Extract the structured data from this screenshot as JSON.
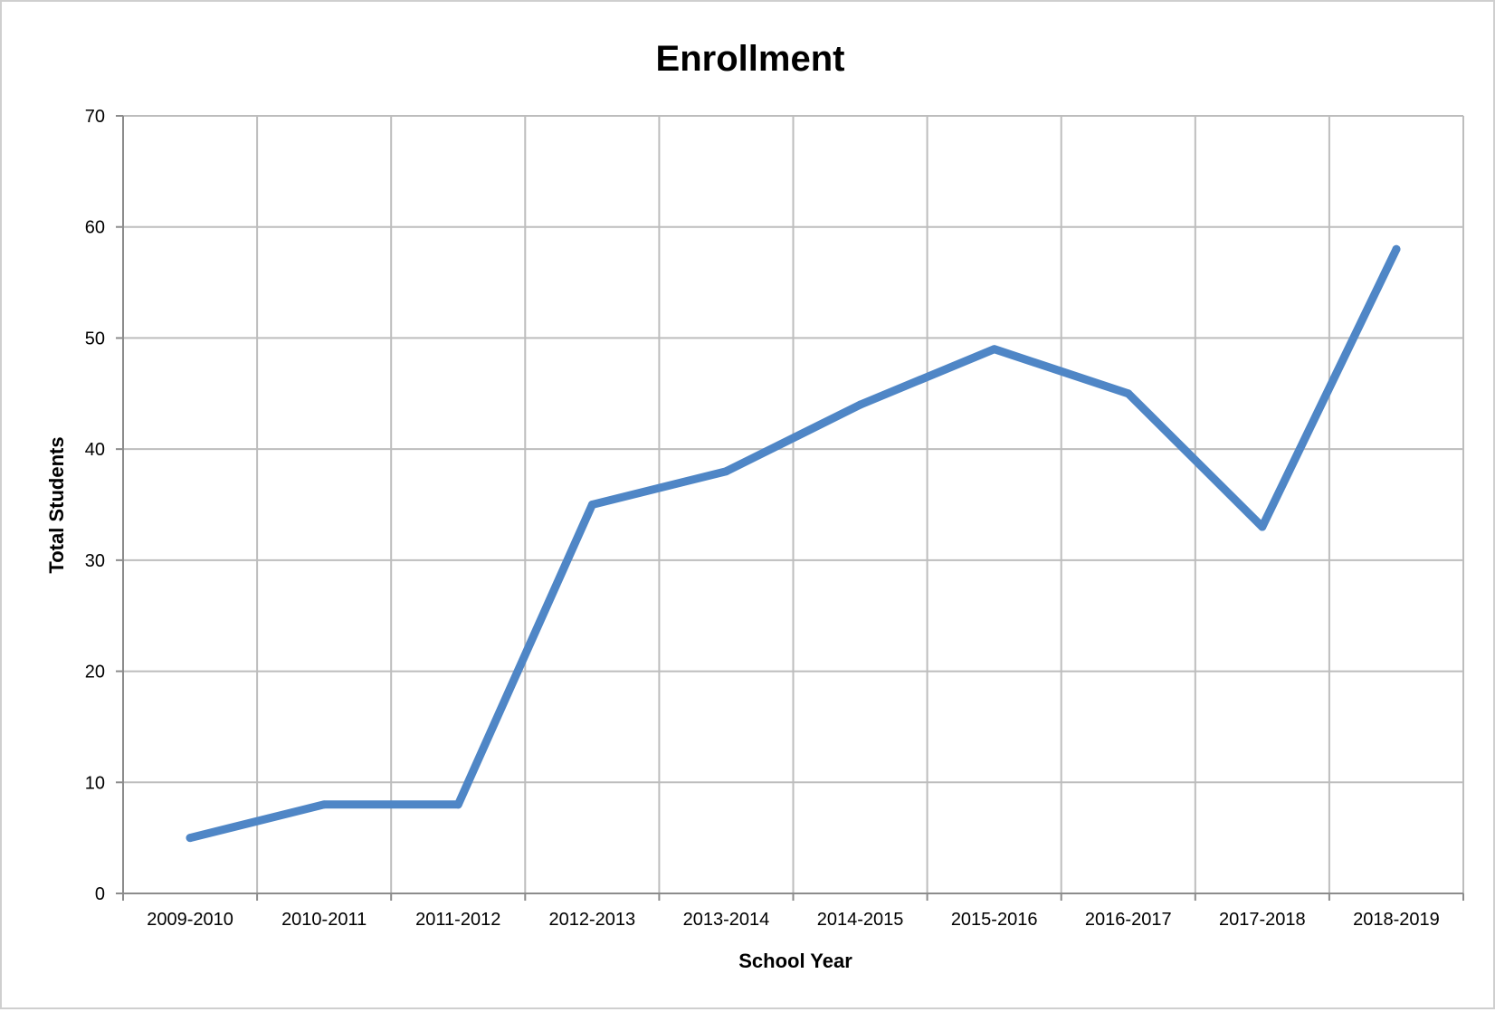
{
  "chart_data": {
    "type": "line",
    "title": "Enrollment",
    "xlabel": "School Year",
    "ylabel": "Total Students",
    "categories": [
      "2009-2010",
      "2010-2011",
      "2011-2012",
      "2012-2013",
      "2013-2014",
      "2014-2015",
      "2015-2016",
      "2016-2017",
      "2017-2018",
      "2018-2019"
    ],
    "series": [
      {
        "values": [
          5,
          8,
          8,
          35,
          38,
          44,
          49,
          45,
          33,
          58
        ]
      }
    ],
    "ylim": [
      0,
      70
    ],
    "yticks": [
      0,
      10,
      20,
      30,
      40,
      50,
      60,
      70
    ],
    "grid": true,
    "legend": "none",
    "line_color": "#4f86c6"
  }
}
